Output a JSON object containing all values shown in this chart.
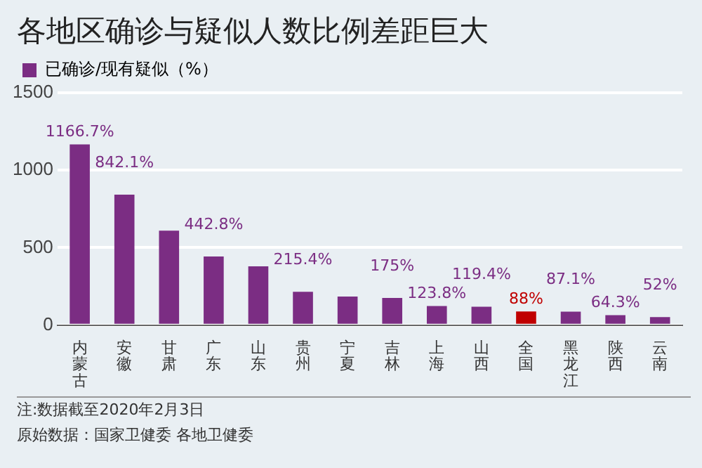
{
  "chart_data": {
    "type": "bar",
    "title": "各地区确诊与疑似人数比例差距巨大",
    "categories": [
      "内蒙古",
      "安徽",
      "甘肃",
      "广东",
      "山东",
      "贵州",
      "宁夏",
      "吉林",
      "上海",
      "山西",
      "全国",
      "黑龙江",
      "陕西",
      "云南"
    ],
    "series": [
      {
        "name": "已确诊/现有疑似（%）",
        "color": "#7b2d83",
        "values": [
          1166.7,
          842.1,
          610,
          442.8,
          380,
          215.4,
          185,
          175,
          123.8,
          119.4,
          88,
          87.1,
          64.3,
          52
        ],
        "colors": [
          "#7b2d83",
          "#7b2d83",
          "#7b2d83",
          "#7b2d83",
          "#7b2d83",
          "#7b2d83",
          "#7b2d83",
          "#7b2d83",
          "#7b2d83",
          "#7b2d83",
          "#c00000",
          "#7b2d83",
          "#7b2d83",
          "#7b2d83"
        ],
        "value_labels": [
          "1166.7%",
          "842.1%",
          null,
          "442.8%",
          null,
          "215.4%",
          null,
          "175%",
          "123.8%",
          "119.4%",
          "88%",
          "87.1%",
          "64.3%",
          "52%"
        ]
      }
    ],
    "ylim": [
      0,
      1500
    ],
    "yticks": [
      0,
      500,
      1000,
      1500
    ],
    "grid": "y",
    "legend": "top left",
    "annotations": [
      "注:数据截至2020年2月3日",
      "原始数据：国家卫健委 各地卫健委"
    ]
  }
}
